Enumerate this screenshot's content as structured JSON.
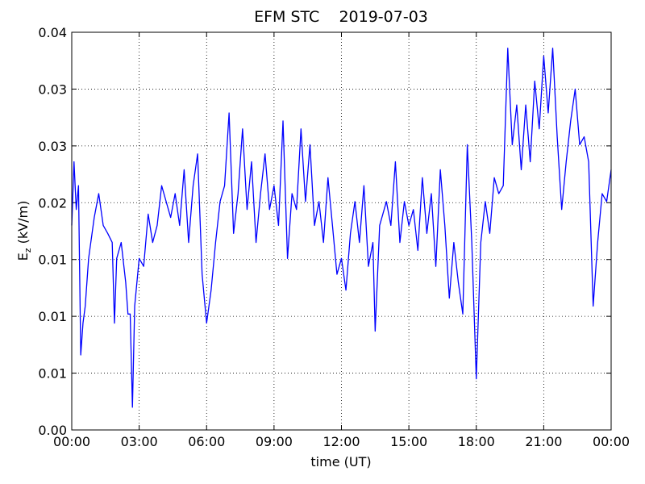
{
  "chart_data": {
    "type": "line",
    "title": "EFM STC    2019-07-03",
    "xlabel": "time (UT)",
    "ylabel": [
      "E",
      "z",
      " (kV/m)"
    ],
    "x": [
      0,
      0.1,
      0.2,
      0.3,
      0.4,
      0.5,
      0.6,
      0.75,
      1.0,
      1.2,
      1.4,
      1.6,
      1.8,
      1.9,
      2.0,
      2.2,
      2.4,
      2.5,
      2.6,
      2.7,
      2.8,
      3.0,
      3.2,
      3.4,
      3.6,
      3.8,
      4.0,
      4.2,
      4.4,
      4.6,
      4.8,
      5.0,
      5.2,
      5.4,
      5.6,
      5.8,
      6.0,
      6.2,
      6.4,
      6.6,
      6.8,
      7.0,
      7.2,
      7.4,
      7.6,
      7.8,
      8.0,
      8.2,
      8.4,
      8.6,
      8.8,
      9.0,
      9.2,
      9.4,
      9.6,
      9.8,
      10.0,
      10.2,
      10.4,
      10.6,
      10.8,
      11.0,
      11.2,
      11.4,
      11.6,
      11.8,
      12.0,
      12.2,
      12.4,
      12.6,
      12.8,
      13.0,
      13.2,
      13.4,
      13.5,
      13.7,
      14.0,
      14.2,
      14.4,
      14.6,
      14.8,
      15.0,
      15.2,
      15.4,
      15.6,
      15.8,
      16.0,
      16.2,
      16.4,
      16.6,
      16.8,
      17.0,
      17.2,
      17.4,
      17.6,
      17.8,
      18.0,
      18.2,
      18.4,
      18.6,
      18.8,
      19.0,
      19.2,
      19.4,
      19.6,
      19.8,
      20.0,
      20.2,
      20.4,
      20.6,
      20.8,
      21.0,
      21.2,
      21.4,
      21.6,
      21.8,
      22.0,
      22.2,
      22.4,
      22.6,
      22.8,
      23.0,
      23.2,
      23.4,
      23.6,
      23.8,
      24.0
    ],
    "values": [
      0.018,
      0.0236,
      0.0194,
      0.0215,
      0.0066,
      0.0094,
      0.0109,
      0.0151,
      0.0187,
      0.0208,
      0.018,
      0.0173,
      0.0165,
      0.0094,
      0.0151,
      0.0165,
      0.013,
      0.0102,
      0.0102,
      0.002,
      0.0109,
      0.0151,
      0.0144,
      0.019,
      0.0165,
      0.018,
      0.0215,
      0.0201,
      0.0187,
      0.0208,
      0.018,
      0.0229,
      0.0165,
      0.0215,
      0.0243,
      0.0137,
      0.0094,
      0.0123,
      0.0165,
      0.0201,
      0.0215,
      0.0279,
      0.0173,
      0.0208,
      0.0265,
      0.0194,
      0.0236,
      0.0165,
      0.0208,
      0.0243,
      0.0194,
      0.0215,
      0.018,
      0.0272,
      0.0151,
      0.0208,
      0.0194,
      0.0265,
      0.0201,
      0.0251,
      0.018,
      0.0201,
      0.0165,
      0.0222,
      0.018,
      0.0137,
      0.0151,
      0.0123,
      0.0173,
      0.0201,
      0.0165,
      0.0215,
      0.0144,
      0.0165,
      0.0087,
      0.018,
      0.0201,
      0.018,
      0.0236,
      0.0165,
      0.0201,
      0.018,
      0.0194,
      0.0158,
      0.0222,
      0.0173,
      0.0208,
      0.0144,
      0.0229,
      0.018,
      0.0116,
      0.0165,
      0.013,
      0.0102,
      0.0251,
      0.0165,
      0.0045,
      0.0165,
      0.0201,
      0.0173,
      0.0222,
      0.0208,
      0.0215,
      0.0336,
      0.0251,
      0.0286,
      0.0229,
      0.0286,
      0.0236,
      0.0307,
      0.0265,
      0.0329,
      0.0279,
      0.0336,
      0.0258,
      0.0194,
      0.0236,
      0.0272,
      0.03,
      0.0251,
      0.0258,
      0.0236,
      0.0109,
      0.0165,
      0.0208,
      0.0201,
      0.0229
    ],
    "color": "#0000ff",
    "xlim": [
      0,
      24
    ],
    "xticks": [
      {
        "value": 0,
        "label": "00:00"
      },
      {
        "value": 3,
        "label": "03:00"
      },
      {
        "value": 6,
        "label": "06:00"
      },
      {
        "value": 9,
        "label": "09:00"
      },
      {
        "value": 12,
        "label": "12:00"
      },
      {
        "value": 15,
        "label": "15:00"
      },
      {
        "value": 18,
        "label": "18:00"
      },
      {
        "value": 21,
        "label": "21:00"
      },
      {
        "value": 24,
        "label": "00:00"
      }
    ],
    "ylim": [
      0,
      0.035
    ],
    "yticks": [
      {
        "value": 0,
        "label": "0.00"
      },
      {
        "value": 0.005,
        "label": "0.01"
      },
      {
        "value": 0.01,
        "label": "0.01"
      },
      {
        "value": 0.015,
        "label": "0.01"
      },
      {
        "value": 0.02,
        "label": "0.02"
      },
      {
        "value": 0.025,
        "label": "0.03"
      },
      {
        "value": 0.03,
        "label": "0.03"
      },
      {
        "value": 0.035,
        "label": "0.04"
      }
    ],
    "grid": true
  }
}
